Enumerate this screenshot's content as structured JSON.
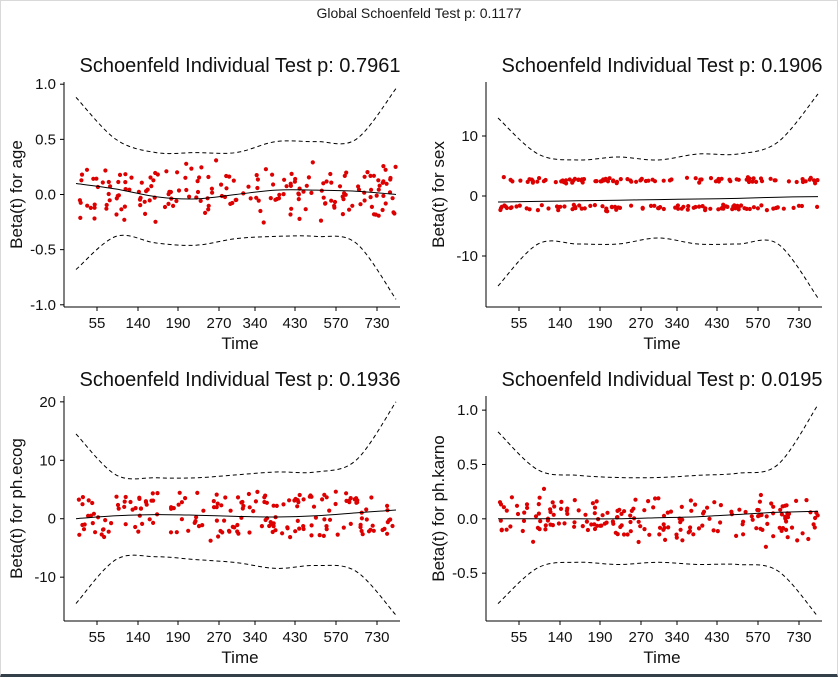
{
  "global_title": "Global Schoenfeld Test p: 0.1177",
  "colors": {
    "points": "#dd0000",
    "fit": "#000000",
    "band": "#000000"
  },
  "chart_data": [
    {
      "type": "scatter",
      "title": "Schoenfeld Individual Test p: 0.7961",
      "xlabel": "Time",
      "ylabel": "Beta(t) for age",
      "x_tick_labels": [
        "55",
        "140",
        "190",
        "270",
        "340",
        "430",
        "570",
        "730"
      ],
      "y_ticks": [
        -1.0,
        -0.5,
        0.0,
        0.5,
        1.0
      ],
      "y_tick_labels": [
        "-1.0",
        "-0.5",
        "0.0",
        "0.5",
        "1.0"
      ],
      "ylim": [
        -1.02,
        1.02
      ],
      "fit": [
        0.1,
        0.05,
        -0.02,
        -0.04,
        0.0,
        0.04,
        0.04,
        0.03,
        0.0
      ],
      "upper": [
        0.88,
        0.5,
        0.38,
        0.38,
        0.38,
        0.48,
        0.48,
        0.5,
        0.96
      ],
      "lower": [
        -0.68,
        -0.38,
        -0.44,
        -0.46,
        -0.4,
        -0.38,
        -0.38,
        -0.44,
        -0.95
      ],
      "points": {
        "upper_cluster": {
          "mean": 0.1,
          "sd": 0.09
        },
        "lower_cluster": {
          "mean": -0.07,
          "sd": 0.09
        }
      }
    },
    {
      "type": "scatter",
      "title": "Schoenfeld Individual Test p: 0.1906",
      "xlabel": "Time",
      "ylabel": "Beta(t) for sex",
      "x_tick_labels": [
        "55",
        "140",
        "190",
        "270",
        "340",
        "430",
        "570",
        "730"
      ],
      "y_ticks": [
        -10,
        0,
        10
      ],
      "y_tick_labels": [
        "-10",
        "0",
        "10"
      ],
      "ylim": [
        -18.5,
        19
      ],
      "fit": [
        -1.0,
        -0.9,
        -0.8,
        -0.7,
        -0.6,
        -0.5,
        -0.4,
        -0.2,
        -0.1
      ],
      "upper": [
        13,
        7,
        6,
        6.5,
        6,
        7,
        7,
        9,
        17
      ],
      "lower": [
        -15,
        -8,
        -8,
        -8,
        -7,
        -8,
        -8,
        -8,
        -17
      ],
      "points": {
        "upper_cluster": {
          "mean": 2.6,
          "sd": 0.25
        },
        "lower_cluster": {
          "mean": -1.9,
          "sd": 0.25
        }
      }
    },
    {
      "type": "scatter",
      "title": "Schoenfeld Individual Test p: 0.1936",
      "xlabel": "Time",
      "ylabel": "Beta(t) for ph.ecog",
      "x_tick_labels": [
        "55",
        "140",
        "190",
        "270",
        "340",
        "430",
        "570",
        "730"
      ],
      "y_ticks": [
        -10,
        0,
        10,
        20
      ],
      "y_tick_labels": [
        "-10",
        "0",
        "10",
        "20"
      ],
      "ylim": [
        -17.5,
        21
      ],
      "fit": [
        0.0,
        0.5,
        0.7,
        0.6,
        0.4,
        0.3,
        0.5,
        1.0,
        1.5
      ],
      "upper": [
        14.5,
        7.5,
        7,
        7,
        7.5,
        8,
        8,
        10,
        20
      ],
      "lower": [
        -14.5,
        -7,
        -6.5,
        -7,
        -7.5,
        -8.5,
        -8,
        -9,
        -16.5
      ],
      "points": {
        "upper_cluster": {
          "mean": 2.6,
          "sd": 1.0
        },
        "lower_cluster": {
          "mean": -1.6,
          "sd": 1.0
        }
      }
    },
    {
      "type": "scatter",
      "title": "Schoenfeld Individual Test p: 0.0195",
      "xlabel": "Time",
      "ylabel": "Beta(t) for ph.karno",
      "x_tick_labels": [
        "55",
        "140",
        "190",
        "270",
        "340",
        "430",
        "570",
        "730"
      ],
      "y_ticks": [
        -0.5,
        0.0,
        0.5,
        1.0
      ],
      "y_tick_labels": [
        "-0.5",
        "0.0",
        "0.5",
        "1.0"
      ],
      "ylim": [
        -0.94,
        1.13
      ],
      "fit": [
        0.0,
        0.0,
        0.0,
        0.0,
        0.01,
        0.02,
        0.04,
        0.06,
        0.07
      ],
      "upper": [
        0.8,
        0.45,
        0.4,
        0.38,
        0.38,
        0.4,
        0.42,
        0.5,
        1.05
      ],
      "lower": [
        -0.78,
        -0.45,
        -0.4,
        -0.42,
        -0.4,
        -0.42,
        -0.42,
        -0.48,
        -0.9
      ],
      "points": {
        "upper_cluster": {
          "mean": 0.08,
          "sd": 0.07
        },
        "lower_cluster": {
          "mean": -0.07,
          "sd": 0.07
        }
      }
    }
  ]
}
